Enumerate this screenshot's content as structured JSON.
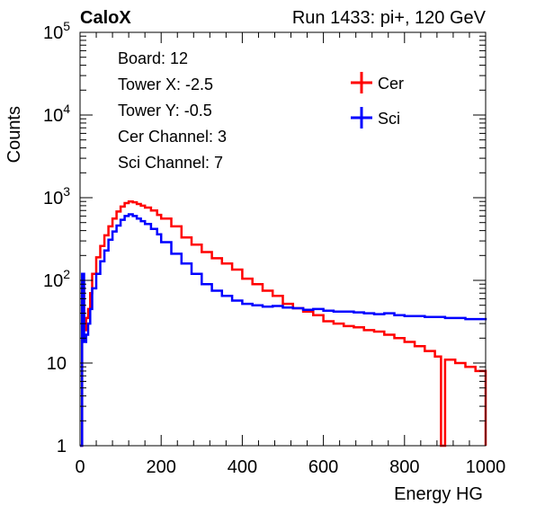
{
  "header": {
    "left_label": "CaloX",
    "right_label": "Run 1433: pi+, 120 GeV"
  },
  "info_box": [
    "Board: 12",
    "Tower X: -2.5",
    "Tower Y: -0.5",
    "Cer Channel: 3",
    "Sci Channel: 7"
  ],
  "chart_data": {
    "type": "line",
    "title": "",
    "xlabel": "Energy HG",
    "ylabel": "Counts",
    "xlim": [
      0,
      1000
    ],
    "ylim": [
      1,
      100000
    ],
    "y_scale": "log",
    "x_ticks": [
      0,
      200,
      400,
      600,
      800,
      1000
    ],
    "y_ticks": [
      {
        "value": 1,
        "base": "1",
        "exp": ""
      },
      {
        "value": 10,
        "base": "10",
        "exp": ""
      },
      {
        "value": 100,
        "base": "10",
        "exp": "2"
      },
      {
        "value": 1000,
        "base": "10",
        "exp": "3"
      },
      {
        "value": 10000,
        "base": "10",
        "exp": "4"
      },
      {
        "value": 100000,
        "base": "10",
        "exp": "5"
      }
    ],
    "grid": false,
    "legend_position": "top-right",
    "colors": {
      "Cer": "#ff0000",
      "Sci": "#0000ff"
    },
    "series": [
      {
        "name": "Cer",
        "x": [
          0,
          5,
          10,
          15,
          20,
          25,
          30,
          40,
          50,
          60,
          70,
          80,
          90,
          100,
          110,
          120,
          130,
          140,
          150,
          160,
          175,
          190,
          200,
          225,
          250,
          275,
          300,
          325,
          350,
          375,
          400,
          425,
          450,
          475,
          500,
          525,
          550,
          575,
          600,
          625,
          650,
          675,
          700,
          725,
          750,
          775,
          800,
          825,
          850,
          875,
          890,
          900,
          925,
          950,
          975,
          1000
        ],
        "values": [
          1,
          80,
          25,
          35,
          45,
          70,
          120,
          190,
          260,
          350,
          450,
          560,
          680,
          780,
          860,
          900,
          880,
          840,
          800,
          760,
          700,
          620,
          560,
          450,
          330,
          270,
          220,
          185,
          160,
          135,
          105,
          90,
          75,
          65,
          52,
          46,
          42,
          38,
          32,
          30,
          28,
          27,
          25,
          24,
          22,
          20,
          18,
          16,
          14,
          12,
          1,
          11,
          10,
          9,
          8,
          1
        ]
      },
      {
        "name": "Sci",
        "x": [
          0,
          5,
          10,
          15,
          20,
          25,
          30,
          40,
          50,
          60,
          70,
          80,
          90,
          100,
          110,
          120,
          130,
          140,
          150,
          160,
          175,
          190,
          200,
          225,
          250,
          275,
          300,
          325,
          350,
          375,
          400,
          425,
          450,
          475,
          500,
          525,
          550,
          575,
          600,
          625,
          650,
          675,
          700,
          725,
          750,
          775,
          800,
          825,
          850,
          875,
          900,
          925,
          950,
          975,
          1000
        ],
        "values": [
          1,
          120,
          18,
          22,
          30,
          45,
          80,
          120,
          170,
          230,
          310,
          390,
          460,
          540,
          600,
          630,
          600,
          560,
          520,
          480,
          420,
          360,
          290,
          210,
          160,
          120,
          90,
          75,
          65,
          57,
          52,
          50,
          48,
          49,
          47,
          46,
          44,
          45,
          43,
          42,
          42,
          41,
          40,
          39,
          40,
          38,
          37,
          37,
          36,
          36,
          35,
          35,
          34,
          34,
          35
        ]
      }
    ]
  }
}
